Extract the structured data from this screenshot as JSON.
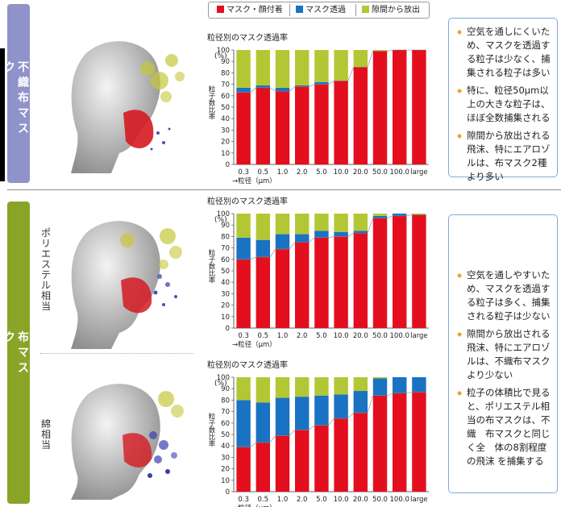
{
  "sections": {
    "top": {
      "tab_lines": [
        "不",
        "織",
        "布",
        "マ",
        "ス",
        "ク"
      ],
      "tab_edge": "ク"
    },
    "bottom": {
      "tab_lines": [
        "布",
        "マ",
        "ス"
      ],
      "tab_edge": "ク",
      "sub_labels": [
        "ポリエステル相当",
        "綿相当"
      ]
    }
  },
  "legend": [
    {
      "label": "マスク・顔付着",
      "color": "#e30f1e"
    },
    {
      "label": "マスク透過",
      "color": "#1a72c2"
    },
    {
      "label": "隙間から放出",
      "color": "#b3c735"
    }
  ],
  "notes": {
    "top": [
      "空気を通しにくいため、マスクを透過する粒子は少なく、捕集される粒子は多い",
      "特に、粒径50μm以上の大きな粒子は、ほぼ全数捕集される",
      "隙間から放出される飛沫、特にエアロゾルは、布マスク2種より多い"
    ],
    "bottom": [
      "空気を通しやすいため、マスクを透過する粒子は多く、捕集される粒子は少ない",
      "隙間から放出される飛沫、特にエアロゾルは、不織布マスクより少ない",
      "粒子の体積比で見ると、ポリエステル相当の布マスクは、不織　布マスクと同じく全　体の8割程度の飛沫 を捕集する"
    ]
  },
  "chart_data": [
    {
      "type": "bar",
      "title": "粒径別のマスク透過率",
      "ylabel": "粒子数比率",
      "yunit": "(%)",
      "xlabel": "→粒径（μm）",
      "ylim": [
        0,
        100
      ],
      "yticks": [
        "0",
        "10",
        "20",
        "30",
        "40",
        "50",
        "60",
        "70",
        "80",
        "90",
        "100"
      ],
      "categories": [
        "0.3",
        "0.5",
        "1.0",
        "2.0",
        "5.0",
        "10.0",
        "20.0",
        "50.0",
        "100.0",
        "large"
      ],
      "series": [
        {
          "name": "マスク・顔付着",
          "values": [
            63,
            67,
            64,
            68,
            70,
            73,
            85,
            99,
            100,
            100
          ]
        },
        {
          "name": "マスク透過",
          "values": [
            4,
            2,
            3,
            1,
            2,
            0,
            0,
            0,
            0,
            0
          ]
        },
        {
          "name": "隙間から放出",
          "values": [
            33,
            31,
            33,
            31,
            28,
            27,
            15,
            1,
            0,
            0
          ]
        }
      ]
    },
    {
      "type": "bar",
      "title": "粒径別のマスク透過率",
      "ylabel": "粒子数比率",
      "yunit": "(%)",
      "xlabel": "→粒径（μm）",
      "ylim": [
        0,
        100
      ],
      "yticks": [
        "0",
        "10",
        "20",
        "30",
        "40",
        "50",
        "60",
        "70",
        "80",
        "90",
        "100"
      ],
      "categories": [
        "0.3",
        "0.5",
        "1.0",
        "2.0",
        "5.0",
        "10.0",
        "20.0",
        "50.0",
        "100.0",
        "large"
      ],
      "series": [
        {
          "name": "マスク・顔付着",
          "values": [
            60,
            62,
            69,
            75,
            79,
            80,
            83,
            96,
            98,
            99
          ]
        },
        {
          "name": "マスク透過",
          "values": [
            19,
            15,
            13,
            7,
            6,
            4,
            2,
            2,
            2,
            0
          ]
        },
        {
          "name": "隙間から放出",
          "values": [
            21,
            23,
            18,
            18,
            15,
            16,
            15,
            2,
            0,
            1
          ]
        }
      ]
    },
    {
      "type": "bar",
      "title": "粒径別のマスク透過率",
      "ylabel": "粒子数比率",
      "yunit": "(%)",
      "xlabel": "→粒径（μm）",
      "ylim": [
        0,
        100
      ],
      "yticks": [
        "0",
        "10",
        "20",
        "30",
        "40",
        "50",
        "60",
        "70",
        "80",
        "90",
        "100"
      ],
      "categories": [
        "0.3",
        "0.5",
        "1.0",
        "2.0",
        "5.0",
        "10.0",
        "20.0",
        "50.0",
        "100.0",
        "large"
      ],
      "series": [
        {
          "name": "マスク・顔付着",
          "values": [
            39,
            43,
            49,
            54,
            58,
            64,
            69,
            84,
            86,
            87
          ]
        },
        {
          "name": "マスク透過",
          "values": [
            41,
            35,
            33,
            29,
            26,
            21,
            19,
            15,
            14,
            13
          ]
        },
        {
          "name": "隙間から放出",
          "values": [
            20,
            22,
            18,
            17,
            16,
            15,
            12,
            1,
            0,
            0
          ]
        }
      ]
    }
  ]
}
